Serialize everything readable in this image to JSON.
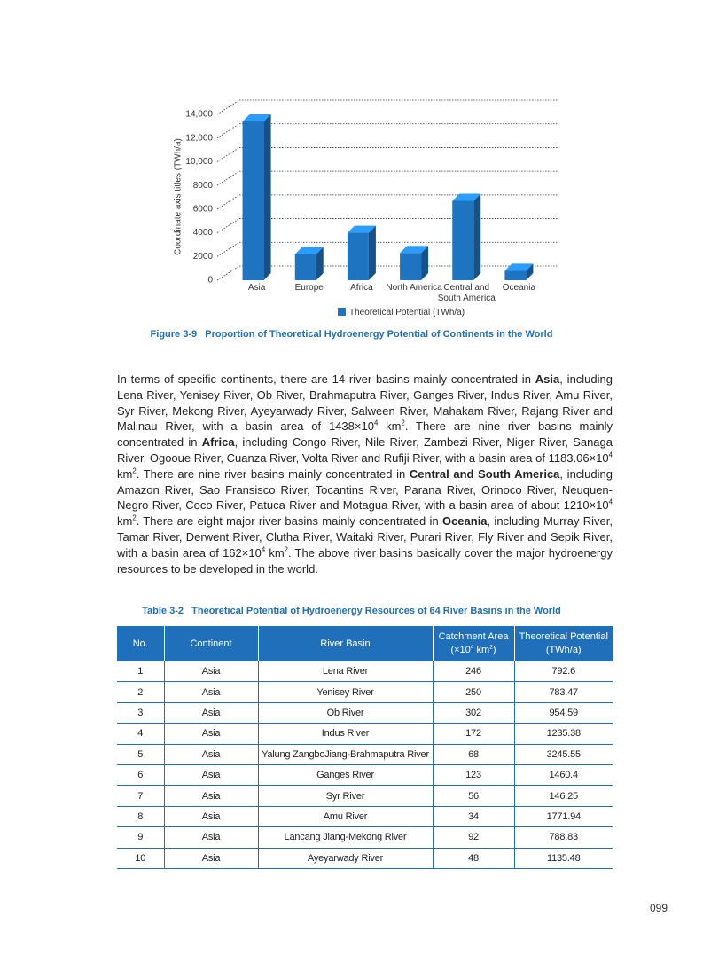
{
  "chart_data": {
    "type": "bar3d",
    "y_label": "Coordinate axis titles (TWh/a)",
    "categories": [
      "Asia",
      "Europe",
      "Africa",
      "North America",
      "Central and South America",
      "Oceania"
    ],
    "series": [
      {
        "name": "Theoretical Potential (TWh/a)",
        "color": "#1f74c2",
        "values": [
          13400,
          2200,
          4000,
          2300,
          6700,
          800
        ]
      }
    ],
    "ylim": [
      0,
      14000
    ],
    "yticks": [
      0,
      2000,
      4000,
      6000,
      8000,
      {
        "value": 10000,
        "label": "10,000"
      },
      {
        "value": 12000,
        "label": "12,000"
      },
      {
        "value": 14000,
        "label": "14,000"
      }
    ],
    "grid": true,
    "caption": "Figure 3-9   Proportion of Theoretical Hydroenergy Potential of Continents in the World"
  },
  "paragraph": [
    {
      "text": "In terms of specific continents, there are 14 river basins mainly concentrated in "
    },
    {
      "text": "Asia",
      "style": "bold"
    },
    {
      "text": ", including Lena River, Yenisey River, Ob River, Brahmaputra River, Ganges River, Indus River, Amu River, Syr River, Mekong River, Ayeyarwady River, Salween River, Mahakam River, Rajang River and Malinau River, with a basin area of 1438×10"
    },
    {
      "text": "4",
      "style": "sup"
    },
    {
      "text": " km"
    },
    {
      "text": "2",
      "style": "sup"
    },
    {
      "text": ". There are nine river basins mainly concentrated in "
    },
    {
      "text": "Africa",
      "style": "bold"
    },
    {
      "text": ", including Congo River, Nile River, Zambezi River, Niger River, Sanaga River, Ogooue River, Cuanza River, Volta River and Rufiji River, with a basin area of 1183.06×10"
    },
    {
      "text": "4",
      "style": "sup"
    },
    {
      "text": " km"
    },
    {
      "text": "2",
      "style": "sup"
    },
    {
      "text": ". There are nine river basins mainly concentrated in "
    },
    {
      "text": "Central and South America",
      "style": "bold"
    },
    {
      "text": ", including Amazon River, Sao Fransisco River, Tocantins River, Parana River, Orinoco River, Neuquen-Negro River, Coco River, Patuca River and Motagua River, with a basin area of about 1210×10"
    },
    {
      "text": "4",
      "style": "sup"
    },
    {
      "text": " km"
    },
    {
      "text": "2",
      "style": "sup"
    },
    {
      "text": ". There are eight major river basins mainly concentrated in "
    },
    {
      "text": "Oceania",
      "style": "bold"
    },
    {
      "text": ", including Murray River, Tamar River, Derwent River, Clutha River, Waitaki River, Purari River, Fly River and Sepik River, with a basin area of 162×10"
    },
    {
      "text": "4",
      "style": "sup"
    },
    {
      "text": " km"
    },
    {
      "text": "2",
      "style": "sup"
    },
    {
      "text": ". The above river basins basically cover the major hydroenergy resources to be developed in the world."
    }
  ],
  "table": {
    "caption": "Table 3-2   Theoretical Potential of Hydroenergy Resources of 64 River Basins in the World",
    "header": [
      "No.",
      "Continent",
      "River Basin",
      [
        {
          "text": "Catchment Area (×10"
        },
        {
          "text": "4",
          "style": "sup"
        },
        {
          "text": " km"
        },
        {
          "text": "2",
          "style": "sup"
        },
        {
          "text": ")"
        }
      ],
      "Theoretical Potential (TWh/a)"
    ],
    "rows": [
      [
        1,
        "Asia",
        "Lena River",
        246,
        792.6
      ],
      [
        2,
        "Asia",
        "Yenisey River",
        250,
        783.47
      ],
      [
        3,
        "Asia",
        "Ob River",
        302,
        954.59
      ],
      [
        4,
        "Asia",
        "Indus River",
        172,
        1235.38
      ],
      [
        5,
        "Asia",
        "Yalung ZangboJiang-Brahmaputra River",
        68,
        3245.55
      ],
      [
        6,
        "Asia",
        "Ganges River",
        123,
        1460.4
      ],
      [
        7,
        "Asia",
        "Syr River",
        56,
        146.25
      ],
      [
        8,
        "Asia",
        "Amu River",
        34,
        1771.94
      ],
      [
        9,
        "Asia",
        "Lancang Jiang-Mekong River",
        92,
        788.83
      ],
      [
        10,
        "Asia",
        "Ayeyarwady River",
        48,
        1135.48
      ]
    ]
  },
  "page_number": "099"
}
